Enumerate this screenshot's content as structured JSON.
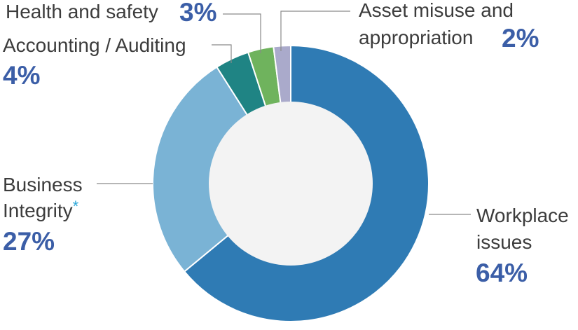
{
  "chart_data": {
    "type": "pie",
    "slices": [
      {
        "label": "Workplace issues",
        "value": 64,
        "value_label": "64%",
        "color": "#2f7bb4"
      },
      {
        "label": "Business Integrity",
        "value": 27,
        "value_label": "27%",
        "color": "#7ab3d5",
        "footnote_mark": "*"
      },
      {
        "label": "Accounting / Auditing",
        "value": 4,
        "value_label": "4%",
        "color": "#1f8484"
      },
      {
        "label": "Health and safety",
        "value": 3,
        "value_label": "3%",
        "color": "#6fb35d"
      },
      {
        "label": "Asset misuse and appropriation",
        "value": 2,
        "value_label": "2%",
        "color": "#aaaacb"
      }
    ],
    "label_lines": {
      "workplace": [
        "Workplace",
        "issues"
      ],
      "business": [
        "Business",
        "Integrity"
      ],
      "accounting": [
        "Accounting / Auditing"
      ],
      "health": [
        "Health and safety"
      ],
      "asset": [
        "Asset misuse and",
        "appropriation"
      ]
    },
    "hole_color": "#f3f3f3",
    "donut": true,
    "legend": "none"
  }
}
